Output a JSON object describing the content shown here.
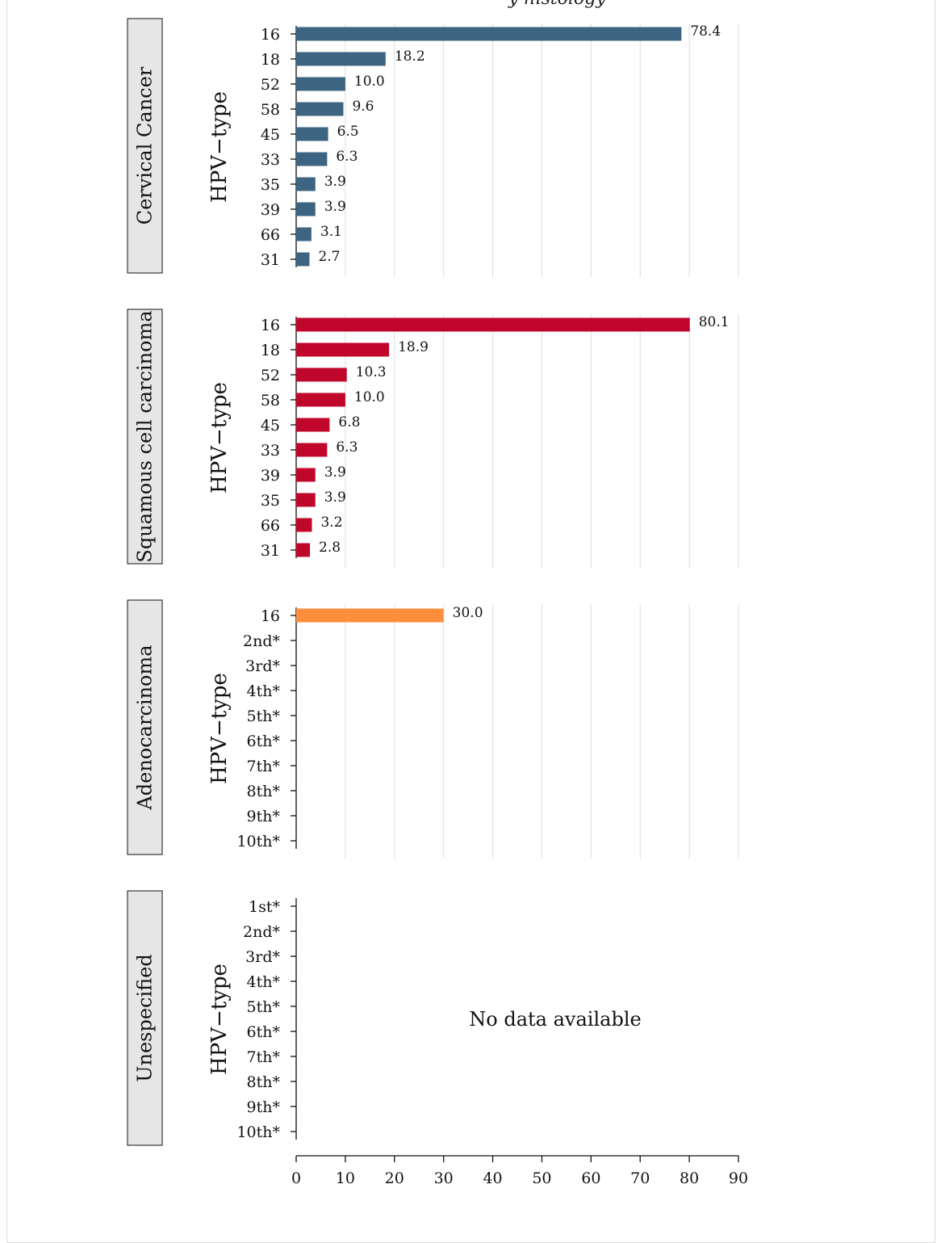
{
  "figure": {
    "title_fragment": "y histology"
  },
  "chart_data": {
    "type": "bar",
    "orientation": "horizontal",
    "xlim": [
      0,
      90
    ],
    "x_ticks": [
      0,
      10,
      20,
      30,
      40,
      50,
      60,
      70,
      80,
      90
    ],
    "grid": "vertical",
    "panels": [
      {
        "strip": "Cervical Cancer",
        "ylabel": "HPV−type",
        "color": "#3d6480",
        "categories": [
          "16",
          "18",
          "52",
          "58",
          "45",
          "33",
          "35",
          "39",
          "66",
          "31"
        ],
        "values": [
          78.4,
          18.2,
          10.0,
          9.6,
          6.5,
          6.3,
          3.9,
          3.9,
          3.1,
          2.7
        ],
        "value_labels": [
          "78.4",
          "18.2",
          "10.0",
          "9.6",
          "6.5",
          "6.3",
          "3.9",
          "3.9",
          "3.1",
          "2.7"
        ],
        "note": "",
        "show_grid": true
      },
      {
        "strip": "Squamous cell carcinoma",
        "ylabel": "HPV−type",
        "color": "#c0072b",
        "categories": [
          "16",
          "18",
          "52",
          "58",
          "45",
          "33",
          "39",
          "35",
          "66",
          "31"
        ],
        "values": [
          80.1,
          18.9,
          10.3,
          10.0,
          6.8,
          6.3,
          3.9,
          3.9,
          3.2,
          2.8
        ],
        "value_labels": [
          "80.1",
          "18.9",
          "10.3",
          "10.0",
          "6.8",
          "6.3",
          "3.9",
          "3.9",
          "3.2",
          "2.8"
        ],
        "note": "",
        "show_grid": true
      },
      {
        "strip": "Adenocarcinoma",
        "ylabel": "HPV−type",
        "color": "#fd8f3c",
        "categories": [
          "16",
          "2nd*",
          "3rd*",
          "4th*",
          "5th*",
          "6th*",
          "7th*",
          "8th*",
          "9th*",
          "10th*"
        ],
        "values": [
          30.0,
          null,
          null,
          null,
          null,
          null,
          null,
          null,
          null,
          null
        ],
        "value_labels": [
          "30.0",
          "",
          "",
          "",
          "",
          "",
          "",
          "",
          "",
          ""
        ],
        "note": "",
        "show_grid": true
      },
      {
        "strip": "Unespecified",
        "ylabel": "HPV−type",
        "color": "#999999",
        "categories": [
          "1st*",
          "2nd*",
          "3rd*",
          "4th*",
          "5th*",
          "6th*",
          "7th*",
          "8th*",
          "9th*",
          "10th*"
        ],
        "values": [
          null,
          null,
          null,
          null,
          null,
          null,
          null,
          null,
          null,
          null
        ],
        "value_labels": [
          "",
          "",
          "",
          "",
          "",
          "",
          "",
          "",
          "",
          ""
        ],
        "note": "No data available",
        "show_grid": false
      }
    ]
  }
}
